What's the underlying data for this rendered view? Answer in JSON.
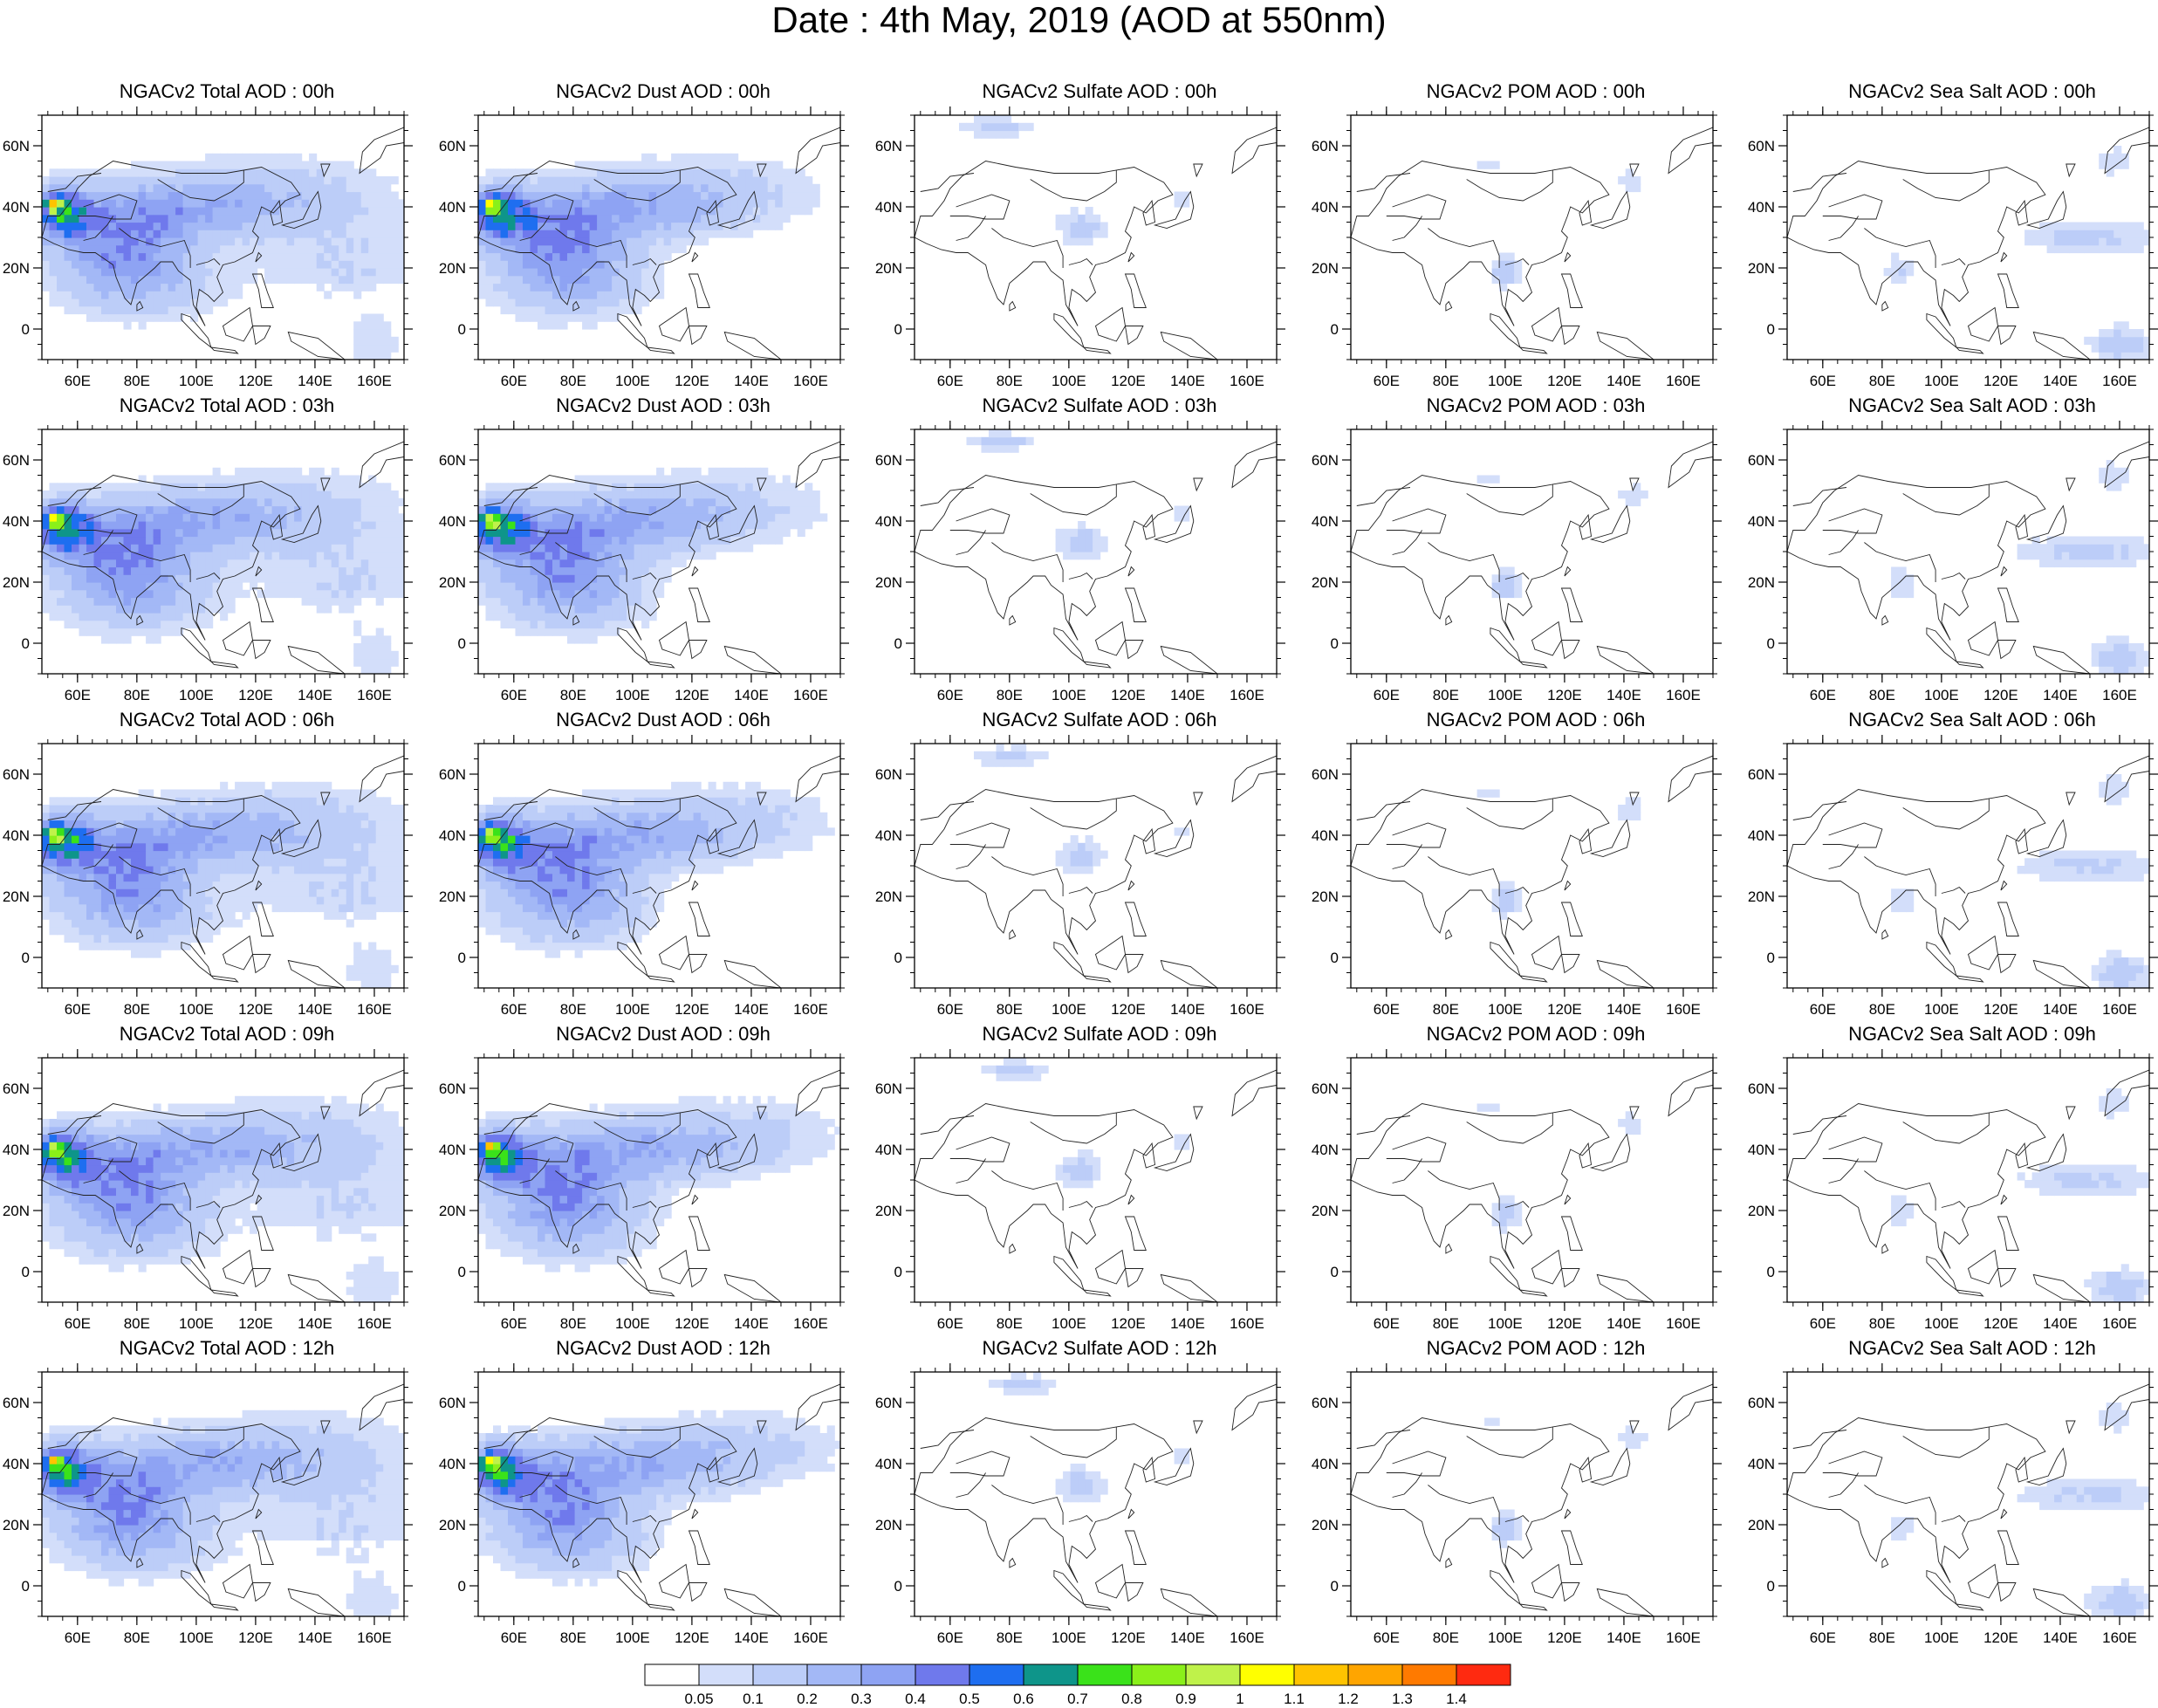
{
  "title": "Date : 4th May, 2019 (AOD at 550nm)",
  "rows": [
    {
      "hour": "00h",
      "panels": [
        {
          "title": "NGACv2 Total AOD : 00h",
          "species": "total"
        },
        {
          "title": "NGACv2 Dust AOD : 00h",
          "species": "dust"
        },
        {
          "title": "NGACv2 Sulfate AOD : 00h",
          "species": "sulfate"
        },
        {
          "title": "NGACv2 POM AOD : 00h",
          "species": "pom"
        },
        {
          "title": "NGACv2 Sea Salt AOD : 00h",
          "species": "seasalt"
        }
      ]
    },
    {
      "hour": "03h",
      "panels": [
        {
          "title": "NGACv2 Total AOD : 03h",
          "species": "total"
        },
        {
          "title": "NGACv2 Dust AOD : 03h",
          "species": "dust"
        },
        {
          "title": "NGACv2 Sulfate AOD : 03h",
          "species": "sulfate"
        },
        {
          "title": "NGACv2 POM AOD : 03h",
          "species": "pom"
        },
        {
          "title": "NGACv2 Sea Salt AOD : 03h",
          "species": "seasalt"
        }
      ]
    },
    {
      "hour": "06h",
      "panels": [
        {
          "title": "NGACv2 Total AOD : 06h",
          "species": "total"
        },
        {
          "title": "NGACv2 Dust AOD : 06h",
          "species": "dust"
        },
        {
          "title": "NGACv2 Sulfate AOD : 06h",
          "species": "sulfate"
        },
        {
          "title": "NGACv2 POM AOD : 06h",
          "species": "pom"
        },
        {
          "title": "NGACv2 Sea Salt AOD : 06h",
          "species": "seasalt"
        }
      ]
    },
    {
      "hour": "09h",
      "panels": [
        {
          "title": "NGACv2 Total AOD : 09h",
          "species": "total"
        },
        {
          "title": "NGACv2 Dust AOD : 09h",
          "species": "dust"
        },
        {
          "title": "NGACv2 Sulfate AOD : 09h",
          "species": "sulfate"
        },
        {
          "title": "NGACv2 POM AOD : 09h",
          "species": "pom"
        },
        {
          "title": "NGACv2 Sea Salt  AOD : 09h",
          "species": "seasalt"
        }
      ]
    },
    {
      "hour": "12h",
      "panels": [
        {
          "title": "NGACv2 Total AOD  : 12h",
          "species": "total"
        },
        {
          "title": "NGACv2 Dust AOD : 12h",
          "species": "dust"
        },
        {
          "title": "NGACv2 Sulfate AOD : 12h",
          "species": "sulfate"
        },
        {
          "title": "NGACv2 POM  AOD : 12h",
          "species": "pom"
        },
        {
          "title": "NGACv2 Sea Salt  AOD : 12h",
          "species": "seasalt"
        }
      ]
    }
  ],
  "map": {
    "lon_range": [
      48,
      170
    ],
    "lat_range": [
      -10,
      70
    ],
    "lon_ticks": [
      "60E",
      "80E",
      "100E",
      "120E",
      "140E",
      "160E"
    ],
    "lon_tick_values": [
      60,
      80,
      100,
      120,
      140,
      160
    ],
    "lat_ticks": [
      "0",
      "20N",
      "40N",
      "60N"
    ],
    "lat_tick_values": [
      0,
      20,
      40,
      60
    ]
  },
  "colorbar": {
    "labels": [
      "0.05",
      "0.1",
      "0.2",
      "0.3",
      "0.4",
      "0.5",
      "0.6",
      "0.7",
      "0.8",
      "0.9",
      "1",
      "1.1",
      "1.2",
      "1.3",
      "1.4"
    ],
    "colors": [
      "#ffffff",
      "#d3defa",
      "#bccdf8",
      "#a3b8f6",
      "#8ea3f3",
      "#6f79ec",
      "#1e6ef0",
      "#0e958a",
      "#3ae21a",
      "#8af01a",
      "#bff24a",
      "#ffff00",
      "#ffc300",
      "#ffa500",
      "#ff7a00",
      "#ff2a10"
    ]
  }
}
